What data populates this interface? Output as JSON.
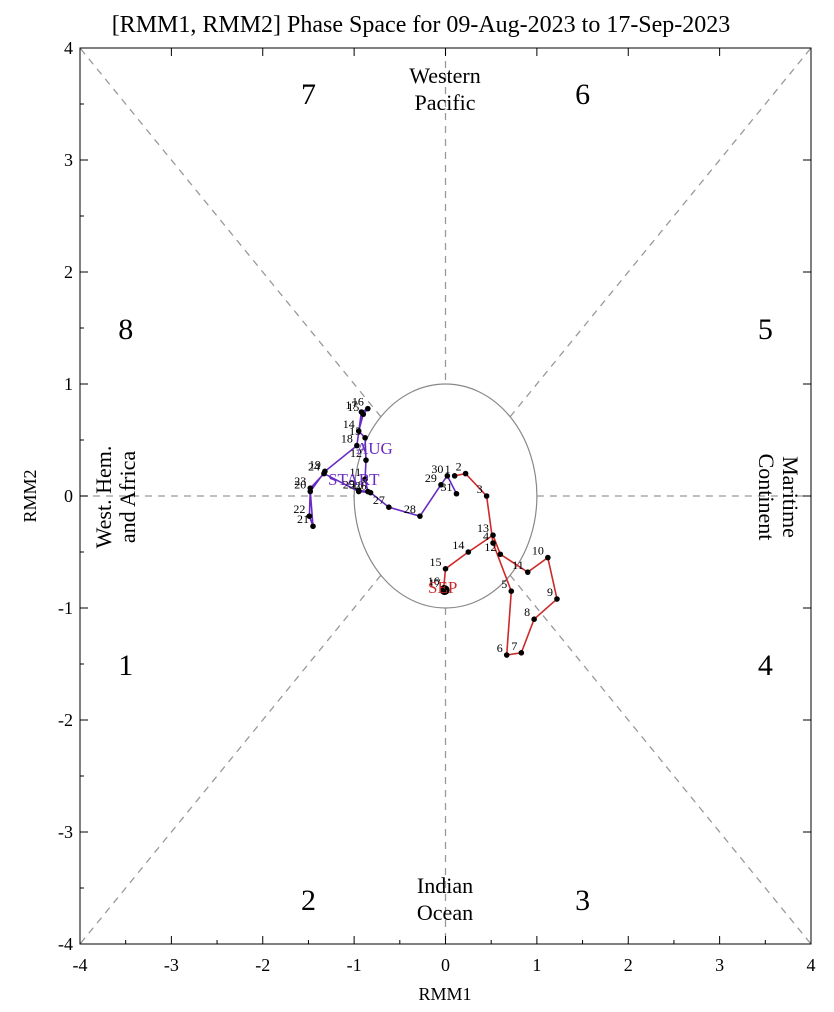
{
  "chart_data": {
    "type": "scatter",
    "title": "[RMM1, RMM2] Phase Space for 09-Aug-2023 to 17-Sep-2023",
    "xlabel": "RMM1",
    "ylabel": "RMM2",
    "xlim": [
      -4,
      4
    ],
    "ylim": [
      -4,
      4
    ],
    "xticks": [
      "-4",
      "-3",
      "-2",
      "-1",
      "0",
      "1",
      "2",
      "3",
      "4"
    ],
    "yticks": [
      "-4",
      "-3",
      "-2",
      "-1",
      "0",
      "1",
      "2",
      "3",
      "4"
    ],
    "phase_labels": [
      {
        "text": "1",
        "x": -3.5,
        "y": -1.5
      },
      {
        "text": "2",
        "x": -1.5,
        "y": -3.6
      },
      {
        "text": "3",
        "x": 1.5,
        "y": -3.6
      },
      {
        "text": "4",
        "x": 3.5,
        "y": -1.5
      },
      {
        "text": "5",
        "x": 3.5,
        "y": 1.5
      },
      {
        "text": "6",
        "x": 1.5,
        "y": 3.6
      },
      {
        "text": "7",
        "x": -1.5,
        "y": 3.6
      },
      {
        "text": "8",
        "x": -3.5,
        "y": 1.5
      }
    ],
    "region_labels": {
      "western_pacific": [
        "Western",
        "Pacific"
      ],
      "indian_ocean": [
        "Indian",
        "Ocean"
      ],
      "maritime_continent": [
        "Maritime",
        "Continent"
      ],
      "west_hem_africa": [
        "West. Hem.",
        "and Africa"
      ]
    },
    "unit_circle_radius": 1,
    "marker_start": "START",
    "marker_aug": "AUG",
    "marker_sep": "SEP",
    "series": [
      {
        "name": "August",
        "color": "#6a2bc4",
        "points": [
          {
            "label": "9",
            "x": -0.95,
            "y": 0.05
          },
          {
            "label": "10",
            "x": -0.85,
            "y": 0.04
          },
          {
            "label": "11",
            "x": -0.88,
            "y": 0.15
          },
          {
            "label": "12",
            "x": -0.87,
            "y": 0.32
          },
          {
            "label": "13",
            "x": -0.88,
            "y": 0.52
          },
          {
            "label": "14",
            "x": -0.95,
            "y": 0.58
          },
          {
            "label": "15",
            "x": -0.9,
            "y": 0.73
          },
          {
            "label": "16",
            "x": -0.85,
            "y": 0.78
          },
          {
            "label": "17",
            "x": -0.92,
            "y": 0.75
          },
          {
            "label": "18",
            "x": -0.97,
            "y": 0.45
          },
          {
            "label": "19",
            "x": -1.32,
            "y": 0.22
          },
          {
            "label": "20",
            "x": -1.48,
            "y": 0.04
          },
          {
            "label": "21",
            "x": -1.45,
            "y": -0.27
          },
          {
            "label": "22",
            "x": -1.49,
            "y": -0.18
          },
          {
            "label": "23",
            "x": -1.48,
            "y": 0.07
          },
          {
            "label": "24",
            "x": -1.33,
            "y": 0.2
          },
          {
            "label": "25",
            "x": -0.95,
            "y": 0.04
          },
          {
            "label": "26",
            "x": -0.82,
            "y": 0.03
          },
          {
            "label": "27",
            "x": -0.62,
            "y": -0.1
          },
          {
            "label": "28",
            "x": -0.28,
            "y": -0.18
          },
          {
            "label": "29",
            "x": -0.05,
            "y": 0.1
          },
          {
            "label": "30",
            "x": 0.02,
            "y": 0.18
          },
          {
            "label": "31",
            "x": 0.12,
            "y": 0.02
          }
        ]
      },
      {
        "name": "September",
        "color": "#cc2a2a",
        "points": [
          {
            "label": "1",
            "x": 0.1,
            "y": 0.18
          },
          {
            "label": "2",
            "x": 0.22,
            "y": 0.2
          },
          {
            "label": "3",
            "x": 0.45,
            "y": 0.0
          },
          {
            "label": "4",
            "x": 0.52,
            "y": -0.42
          },
          {
            "label": "5",
            "x": 0.72,
            "y": -0.85
          },
          {
            "label": "6",
            "x": 0.67,
            "y": -1.42
          },
          {
            "label": "7",
            "x": 0.83,
            "y": -1.4
          },
          {
            "label": "8",
            "x": 0.97,
            "y": -1.1
          },
          {
            "label": "9",
            "x": 1.22,
            "y": -0.92
          },
          {
            "label": "10",
            "x": 1.12,
            "y": -0.55
          },
          {
            "label": "11",
            "x": 0.9,
            "y": -0.68
          },
          {
            "label": "12",
            "x": 0.6,
            "y": -0.52
          },
          {
            "label": "13",
            "x": 0.52,
            "y": -0.35
          },
          {
            "label": "14",
            "x": 0.25,
            "y": -0.5
          },
          {
            "label": "15",
            "x": 0.0,
            "y": -0.65
          },
          {
            "label": "16",
            "x": -0.02,
            "y": -0.82
          },
          {
            "label": "17",
            "x": -0.01,
            "y": -0.84
          }
        ]
      }
    ]
  }
}
